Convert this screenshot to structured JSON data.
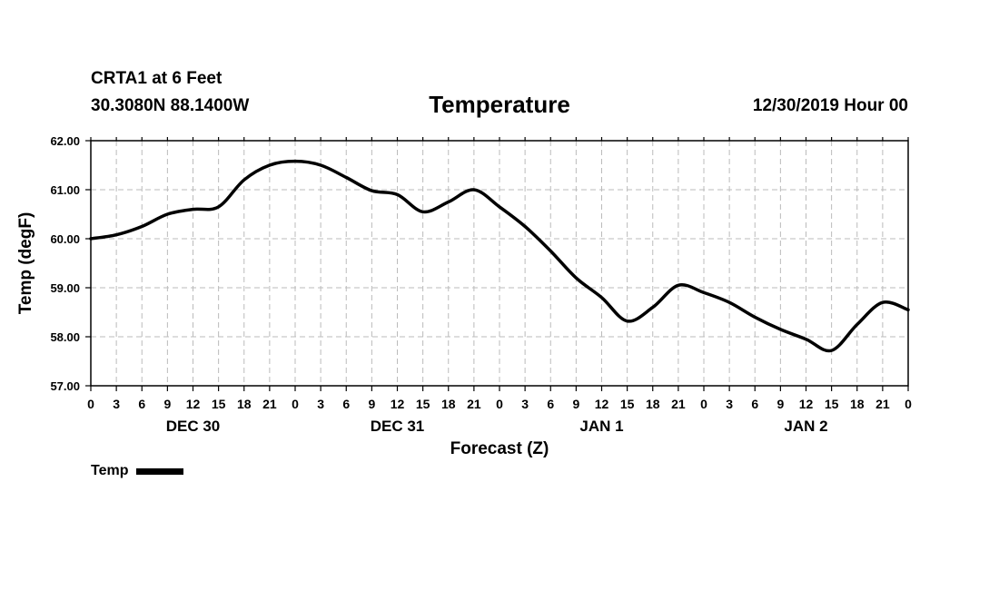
{
  "header": {
    "station": "CRTA1 at 6 Feet",
    "coords": "30.3080N 88.1400W",
    "title": "Temperature",
    "run_time": "12/30/2019 Hour 00"
  },
  "legend": {
    "label": "Temp",
    "color": "#000000"
  },
  "chart_data": {
    "type": "line",
    "title": "Temperature",
    "xlabel": "Forecast (Z)",
    "ylabel": "Temp (degF)",
    "ylim": [
      57.0,
      62.0
    ],
    "xlim": [
      0,
      96
    ],
    "grid": true,
    "legend_position": "bottom-left",
    "y_ticks": [
      "57.00",
      "58.00",
      "59.00",
      "60.00",
      "61.00",
      "62.00"
    ],
    "x_tick_labels": [
      "0",
      "3",
      "6",
      "9",
      "12",
      "15",
      "18",
      "21",
      "0",
      "3",
      "6",
      "9",
      "12",
      "15",
      "18",
      "21",
      "0",
      "3",
      "6",
      "9",
      "12",
      "15",
      "18",
      "21",
      "0",
      "3",
      "6",
      "9",
      "12",
      "15",
      "18",
      "21",
      "0"
    ],
    "date_labels": [
      {
        "label": "DEC 30",
        "hour": 12
      },
      {
        "label": "DEC 31",
        "hour": 36
      },
      {
        "label": "JAN 1",
        "hour": 60
      },
      {
        "label": "JAN 2",
        "hour": 84
      }
    ],
    "series": [
      {
        "name": "Temp",
        "color": "#000000",
        "x": [
          0,
          3,
          6,
          9,
          12,
          15,
          18,
          21,
          24,
          27,
          30,
          33,
          36,
          39,
          42,
          45,
          48,
          51,
          54,
          57,
          60,
          63,
          66,
          69,
          72,
          75,
          78,
          81,
          84,
          87,
          90,
          93,
          96
        ],
        "values": [
          60.0,
          60.08,
          60.25,
          60.5,
          60.6,
          60.65,
          61.2,
          61.5,
          61.58,
          61.5,
          61.25,
          60.98,
          60.9,
          60.55,
          60.75,
          61.0,
          60.65,
          60.25,
          59.75,
          59.2,
          58.8,
          58.32,
          58.6,
          59.05,
          58.9,
          58.7,
          58.4,
          58.15,
          57.95,
          57.72,
          58.25,
          58.7,
          58.55
        ]
      }
    ]
  }
}
